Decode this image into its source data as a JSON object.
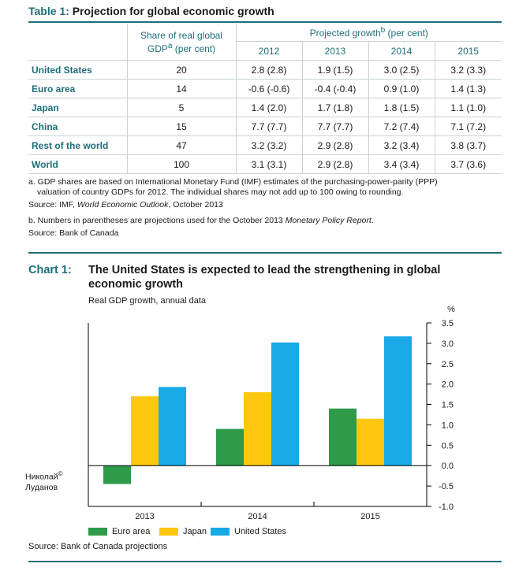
{
  "table": {
    "label": "Table 1:",
    "title": "Projection for global economic growth",
    "share_header_line1": "Share of real global",
    "share_header_line2_pre": "GDP",
    "share_header_sup": "a",
    "share_header_line2_post": " (per cent)",
    "proj_header_pre": "Projected growth",
    "proj_header_sup": "b",
    "proj_header_post": " (per cent)",
    "years": [
      "2012",
      "2013",
      "2014",
      "2015"
    ],
    "rows": [
      {
        "country": "United States",
        "share": "20",
        "values": [
          "2.8 (2.8)",
          "1.9 (1.5)",
          "3.0 (2.5)",
          "3.2 (3.3)"
        ]
      },
      {
        "country": "Euro area",
        "share": "14",
        "values": [
          "-0.6 (-0.6)",
          "-0.4 (-0.4)",
          "0.9 (1.0)",
          "1.4 (1.3)"
        ]
      },
      {
        "country": "Japan",
        "share": "5",
        "values": [
          "1.4 (2.0)",
          "1.7 (1.8)",
          "1.8 (1.5)",
          "1.1 (1.0)"
        ]
      },
      {
        "country": "China",
        "share": "15",
        "values": [
          "7.7 (7.7)",
          "7.7 (7.7)",
          "7.2 (7.4)",
          "7.1 (7.2)"
        ]
      },
      {
        "country": "Rest of the world",
        "share": "47",
        "values": [
          "3.2 (3.2)",
          "2.9 (2.8)",
          "3.2 (3.4)",
          "3.8 (3.7)"
        ]
      },
      {
        "country": "World",
        "share": "100",
        "values": [
          "3.1 (3.1)",
          "2.9 (2.8)",
          "3.4 (3.4)",
          "3.7 (3.6)"
        ]
      }
    ],
    "note_a_line1": "a. GDP shares are based on International Monetary Fund (IMF) estimates of the purchasing-power-parity (PPP)",
    "note_a_line2": "valuation of country GDPs for 2012. The individual shares may not add up to 100 owing to rounding.",
    "source_a_pre": "Source: IMF, ",
    "source_a_italic": "World Economic Outlook",
    "source_a_post": ", October 2013",
    "note_b_pre": "b.  Numbers in parentheses are projections used for the October 2013 ",
    "note_b_italic": "Monetary Policy Report",
    "note_b_post": ".",
    "source_b": "Source: Bank of Canada"
  },
  "chart": {
    "label": "Chart 1:",
    "title": "The United States is expected to lead the strengthening in global economic growth",
    "subtitle": "Real GDP growth, annual data",
    "unit": "%",
    "source": "Source: Bank of Canada projections",
    "watermark_line1": "Николай",
    "watermark_sup": "©",
    "watermark_line2": "Луданов"
  },
  "chart_data": {
    "type": "bar",
    "categories": [
      "2013",
      "2014",
      "2015"
    ],
    "series": [
      {
        "name": "Euro area",
        "color": "#2e9b4a",
        "values": [
          -0.45,
          0.9,
          1.4
        ]
      },
      {
        "name": "Japan",
        "color": "#fdc80f",
        "values": [
          1.7,
          1.8,
          1.15
        ]
      },
      {
        "name": "United States",
        "color": "#19a9e6",
        "values": [
          1.93,
          3.02,
          3.17
        ]
      }
    ],
    "ylim": [
      -1.0,
      3.5
    ],
    "yticks": [
      "3.5",
      "3.0",
      "2.5",
      "2.0",
      "1.5",
      "1.0",
      "0.5",
      "0.0",
      "-0.5",
      "-1.0"
    ],
    "ytick_values": [
      3.5,
      3.0,
      2.5,
      2.0,
      1.5,
      1.0,
      0.5,
      0.0,
      -0.5,
      -1.0
    ],
    "grid": false,
    "legend": "bottom"
  }
}
